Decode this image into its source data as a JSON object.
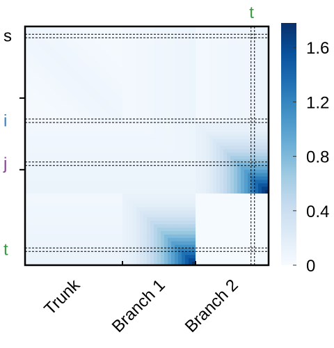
{
  "chart_data": {
    "type": "heatmap",
    "title": "",
    "xlabel": "",
    "ylabel": "",
    "x_categories": [
      "Trunk",
      "Branch 1",
      "Branch 2"
    ],
    "x_category_fractions": [
      0.4,
      0.3,
      0.3
    ],
    "row_markers": [
      {
        "label": "s",
        "color": "#000000",
        "position": 0.04
      },
      {
        "label": "i",
        "color": "#3b7fc0",
        "position": 0.395
      },
      {
        "label": "j",
        "color": "#8a3e9a",
        "position": 0.575
      },
      {
        "label": "t",
        "color": "#3a9a40",
        "position": 0.935
      }
    ],
    "column_markers": [
      {
        "label": "t",
        "color": "#3a9a40",
        "position": 0.935
      }
    ],
    "colorbar": {
      "min": 0,
      "max": 1.78,
      "ticks": [
        0,
        0.4,
        0.8,
        1.2,
        1.6
      ],
      "tick_labels": [
        "0",
        "0.4",
        "0.8",
        "1.2",
        "1.6"
      ],
      "colors": [
        "#f7fbff",
        "#deebf7",
        "#c6dbef",
        "#9ecae1",
        "#6baed6",
        "#4292c6",
        "#2171b5",
        "#08519c",
        "#08306b"
      ]
    },
    "blocks": [
      {
        "region": "Branch 1 × Branch 1",
        "rows": [
          0.7,
          1.0
        ],
        "cols": [
          0.4,
          0.7
        ],
        "peak": 1.7
      },
      {
        "region": "Branch 2 × Branch 2",
        "rows": [
          0.4,
          0.7
        ],
        "cols": [
          0.7,
          1.0
        ],
        "peak": 1.75
      },
      {
        "region": "Trunk × Trunk",
        "rows": [
          0.0,
          0.4
        ],
        "cols": [
          0.0,
          0.4
        ],
        "peak": 0.08
      }
    ]
  }
}
